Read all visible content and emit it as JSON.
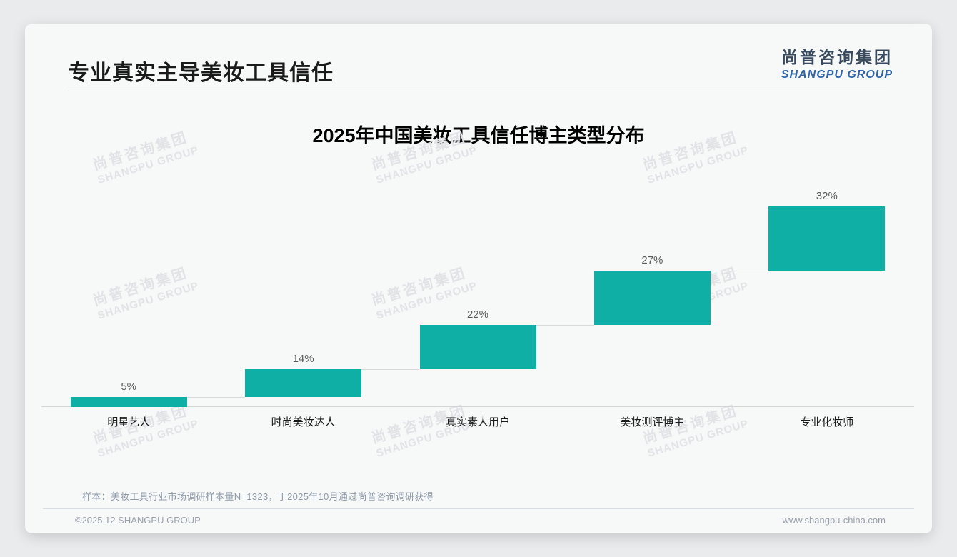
{
  "page": {
    "background": "#E9EBED",
    "card_background": "#F7F8F8"
  },
  "header": {
    "title": "专业真实主导美妆工具信任",
    "title_color": "#1A1A1A",
    "logo_cn": "尚普咨询集团",
    "logo_en": "SHANGPU GROUP",
    "logo_cn_color": "#3A4A5E",
    "logo_en_color": "#2F64A8"
  },
  "chart_data": {
    "type": "bar",
    "subtype": "waterfall",
    "title": "2025年中国美妆工具信任博主类型分布",
    "categories": [
      "明星艺人",
      "时尚美妆达人",
      "真实素人用户",
      "美妆测评博主",
      "专业化妆师"
    ],
    "values": [
      5,
      14,
      22,
      27,
      32
    ],
    "value_labels": [
      "5%",
      "14%",
      "22%",
      "27%",
      "32%"
    ],
    "cumulative": [
      5,
      19,
      41,
      68,
      100
    ],
    "unit": "%",
    "ylim": [
      0,
      100
    ],
    "bar_color": "#0FAFA5",
    "connector_color": "#D9D9D9",
    "value_label_color": "#5A5A5A",
    "grid": false,
    "legend": false
  },
  "watermark": {
    "line_cn": "尚普咨询集团",
    "line_en": "SHANGPU GROUP",
    "color": "#E2E3E6",
    "grid_cols": [
      95,
      485,
      865
    ],
    "grid_rows": [
      162,
      352,
      545
    ]
  },
  "note": {
    "text": "样本：美妆工具行业市场调研样本量N=1323，于2025年10月通过尚普咨询调研获得"
  },
  "footer": {
    "left": "©2025.12 SHANGPU GROUP",
    "right": "www.shangpu-china.com"
  }
}
